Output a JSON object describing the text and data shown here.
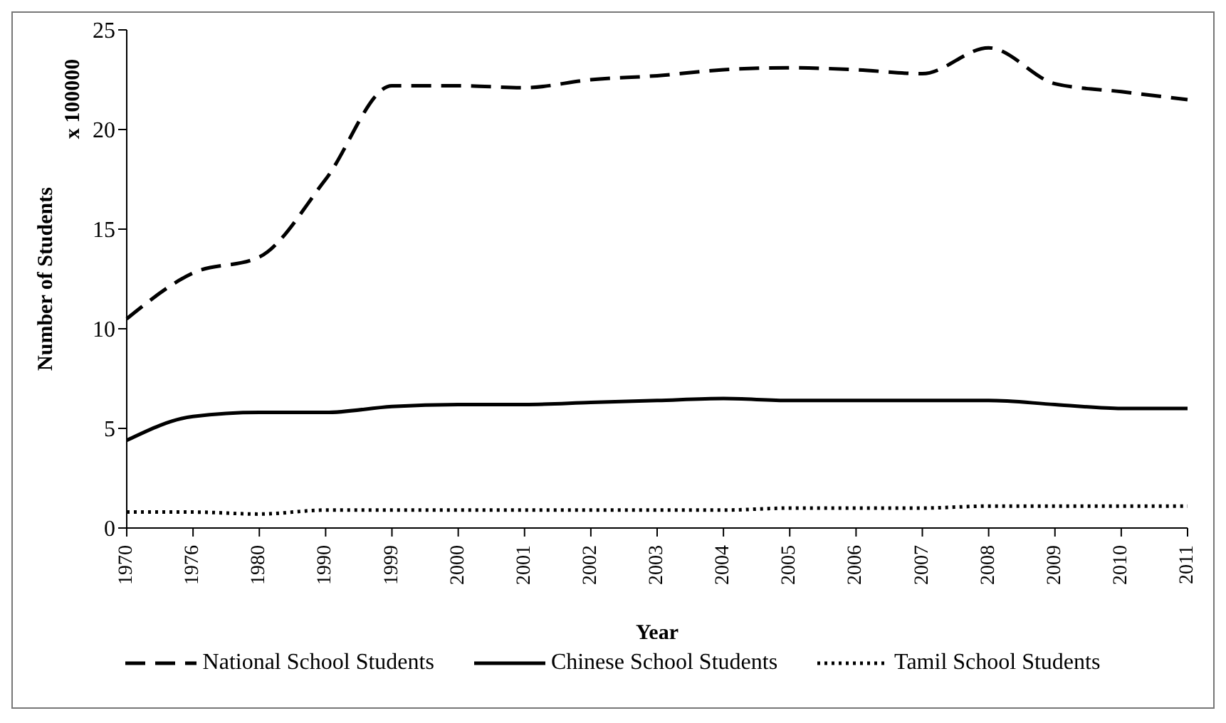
{
  "chart_data": {
    "type": "line",
    "xlabel": "Year",
    "ylabel": "Number of Students",
    "annotations": [
      "x 100000"
    ],
    "categories": [
      "1970",
      "1976",
      "1980",
      "1990",
      "1999",
      "2000",
      "2001",
      "2002",
      "2003",
      "2004",
      "2005",
      "2006",
      "2007",
      "2008",
      "2009",
      "2010",
      "2011"
    ],
    "series": [
      {
        "name": "National School Students",
        "color": "#000000",
        "line_style": "dashed",
        "values": [
          10.5,
          12.8,
          13.6,
          17.5,
          22.2,
          22.2,
          22.1,
          22.5,
          22.7,
          23.0,
          23.1,
          23.0,
          22.8,
          24.1,
          22.3,
          21.9,
          21.5
        ]
      },
      {
        "name": "Chinese School Students",
        "color": "#000000",
        "line_style": "solid",
        "values": [
          4.4,
          5.6,
          5.8,
          5.8,
          6.1,
          6.2,
          6.2,
          6.3,
          6.4,
          6.5,
          6.4,
          6.4,
          6.4,
          6.4,
          6.2,
          6.0,
          6.0
        ]
      },
      {
        "name": "Tamil School Students",
        "color": "#000000",
        "line_style": "dotted",
        "values": [
          0.8,
          0.8,
          0.7,
          0.9,
          0.9,
          0.9,
          0.9,
          0.9,
          0.9,
          0.9,
          1.0,
          1.0,
          1.0,
          1.1,
          1.1,
          1.1,
          1.1
        ]
      }
    ],
    "ylim": [
      0,
      25
    ],
    "yticks": [
      0,
      5,
      10,
      15,
      20,
      25
    ],
    "grid": false,
    "legend": "bottom",
    "marker": "none"
  }
}
